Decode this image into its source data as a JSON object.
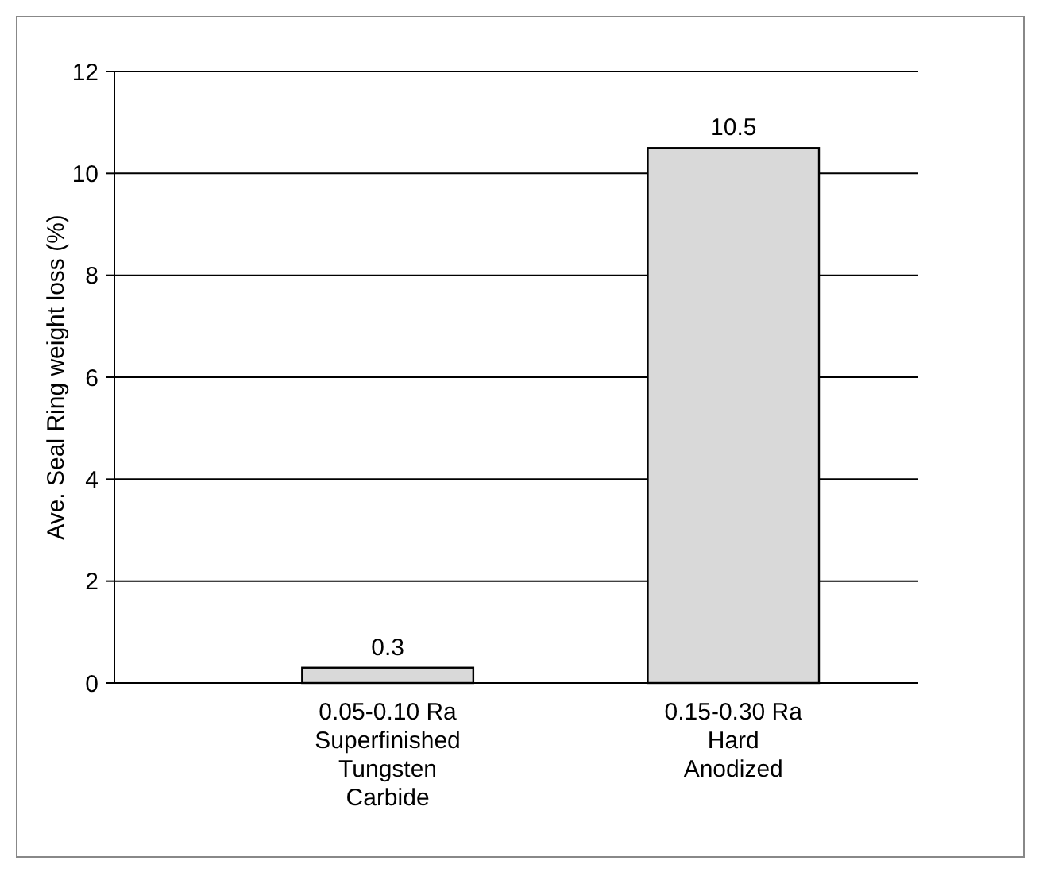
{
  "chart_data": {
    "type": "bar",
    "ylabel": "Ave. Seal Ring weight loss (%)",
    "categories": [
      "0.05-0.10 Ra\nSuperfinished\nTungsten\nCarbide",
      "0.15-0.30 Ra\nHard\nAnodized"
    ],
    "values": [
      0.3,
      10.5
    ],
    "color": "#d9d9d9",
    "ylim": [
      0,
      12
    ],
    "yticks": [
      0,
      2,
      4,
      6,
      8,
      10,
      12
    ],
    "grid": "y",
    "data_labels": true
  }
}
